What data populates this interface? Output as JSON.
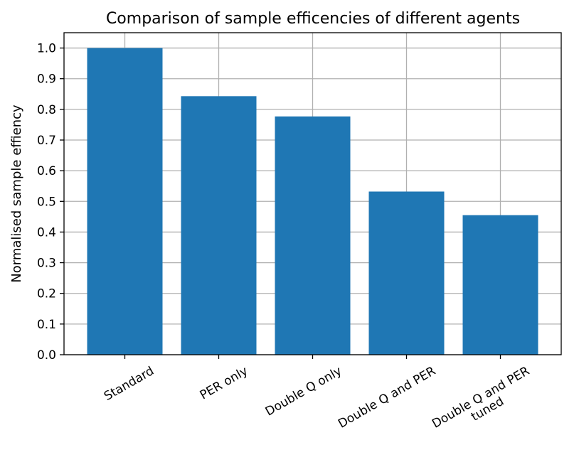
{
  "chart_data": {
    "type": "bar",
    "title": "Comparison of sample efficencies of different agents",
    "xlabel": "",
    "ylabel": "Normalised sample effiency",
    "categories": [
      "Standard",
      "PER only",
      "Double Q only",
      "Double Q and PER",
      "Double Q and PER\ntuned"
    ],
    "values": [
      1.0,
      0.843,
      0.777,
      0.532,
      0.455
    ],
    "ylim": [
      0,
      1.05
    ],
    "yticks": [
      "0.0",
      "0.1",
      "0.2",
      "0.3",
      "0.4",
      "0.5",
      "0.6",
      "0.7",
      "0.8",
      "0.9",
      "1.0"
    ],
    "grid": true,
    "bar_color": "#1f77b4",
    "xtick_rotation_deg": -30
  }
}
